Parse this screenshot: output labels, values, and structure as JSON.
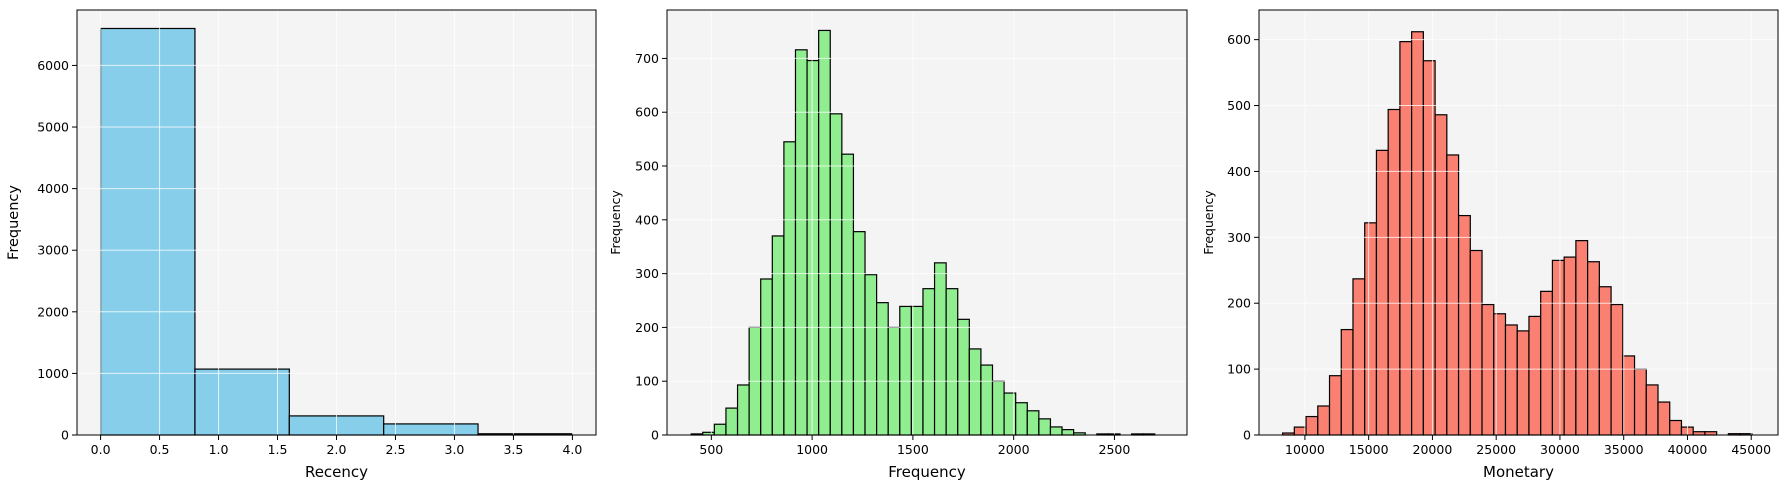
{
  "chart_data": [
    {
      "type": "bar",
      "subtype": "histogram",
      "xlabel": "Recency",
      "ylabel": "Frequency",
      "color": "#87CEEB",
      "edge_color": "#000000",
      "background": "#f4f4f4",
      "grid": true,
      "xlim": [
        -0.2,
        4.2
      ],
      "ylim": [
        0,
        6900
      ],
      "xticks": [
        0.0,
        0.5,
        1.0,
        1.5,
        2.0,
        2.5,
        3.0,
        3.5,
        4.0
      ],
      "xtick_labels": [
        "0.0",
        "0.5",
        "1.0",
        "1.5",
        "2.0",
        "2.5",
        "3.0",
        "3.5",
        "4.0"
      ],
      "yticks": [
        0,
        1000,
        2000,
        3000,
        4000,
        5000,
        6000
      ],
      "ytick_labels": [
        "0",
        "1000",
        "2000",
        "3000",
        "4000",
        "5000",
        "6000"
      ],
      "bin_edges": [
        0.0,
        0.8,
        1.6,
        2.4,
        3.2,
        4.0
      ],
      "values": [
        6600,
        1070,
        310,
        180,
        20
      ]
    },
    {
      "type": "bar",
      "subtype": "histogram",
      "xlabel": "Frequency",
      "ylabel": "Frequency",
      "color": "#90EE90",
      "edge_color": "#000000",
      "background": "#f4f4f4",
      "grid": true,
      "xlim": [
        280,
        2860
      ],
      "ylim": [
        0,
        790
      ],
      "xticks": [
        500,
        1000,
        1500,
        2000,
        2500
      ],
      "xtick_labels": [
        "500",
        "1000",
        "1500",
        "2000",
        "2500"
      ],
      "yticks": [
        0,
        100,
        200,
        300,
        400,
        500,
        600,
        700
      ],
      "ytick_labels": [
        "0",
        "100",
        "200",
        "300",
        "400",
        "500",
        "600",
        "700"
      ],
      "bin_start": 400,
      "bin_width": 57.5,
      "values": [
        2,
        5,
        20,
        50,
        93,
        200,
        290,
        370,
        545,
        716,
        696,
        752,
        597,
        522,
        378,
        298,
        246,
        200,
        239,
        239,
        272,
        320,
        272,
        215,
        160,
        130,
        100,
        78,
        60,
        45,
        30,
        15,
        10,
        4,
        0,
        2,
        2,
        0,
        2,
        2
      ]
    },
    {
      "type": "bar",
      "subtype": "histogram",
      "xlabel": "Monetary",
      "ylabel": "Frequency",
      "color": "#FA8072",
      "edge_color": "#000000",
      "background": "#f4f4f4",
      "grid": true,
      "xlim": [
        6400,
        47100
      ],
      "ylim": [
        0,
        645
      ],
      "xticks": [
        10000,
        15000,
        20000,
        25000,
        30000,
        35000,
        40000,
        45000
      ],
      "xtick_labels": [
        "10000",
        "15000",
        "20000",
        "25000",
        "30000",
        "35000",
        "40000",
        "45000"
      ],
      "yticks": [
        0,
        100,
        200,
        300,
        400,
        500,
        600
      ],
      "ytick_labels": [
        "0",
        "100",
        "200",
        "300",
        "400",
        "500",
        "600"
      ],
      "bin_start": 8250,
      "bin_width": 920,
      "values": [
        3,
        12,
        28,
        44,
        90,
        160,
        237,
        322,
        432,
        494,
        597,
        612,
        568,
        486,
        425,
        333,
        280,
        198,
        184,
        167,
        158,
        180,
        218,
        265,
        270,
        295,
        263,
        225,
        198,
        120,
        100,
        76,
        50,
        22,
        12,
        5,
        5,
        0,
        2,
        2
      ]
    }
  ]
}
